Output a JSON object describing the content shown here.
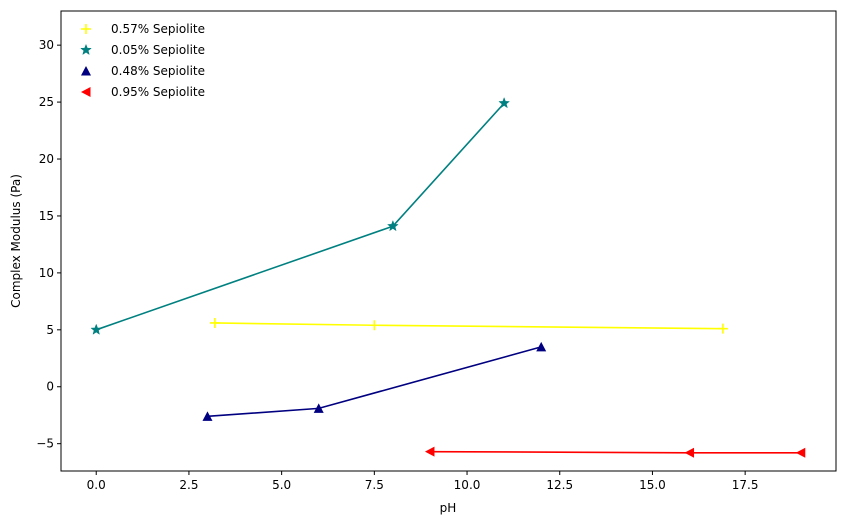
{
  "chart_data": {
    "type": "line",
    "title": "",
    "xlabel": "pH",
    "ylabel": "Complex Modulus (Pa)",
    "xlim": [
      -0.95,
      19.95
    ],
    "ylim": [
      -7.4,
      33.0
    ],
    "xticks": [
      0.0,
      2.5,
      5.0,
      7.5,
      10.0,
      12.5,
      15.0,
      17.5
    ],
    "xtick_labels": [
      "0.0",
      "2.5",
      "5.0",
      "7.5",
      "10.0",
      "12.5",
      "15.0",
      "17.5"
    ],
    "yticks": [
      -5,
      0,
      5,
      10,
      15,
      20,
      25,
      30
    ],
    "ytick_labels": [
      "−5",
      "0",
      "5",
      "10",
      "15",
      "20",
      "25",
      "30"
    ],
    "grid": false,
    "legend_position": "top-left",
    "series": [
      {
        "name": "0.57% Sepiolite",
        "color": "#ffff00",
        "marker": "plus",
        "x": [
          3.2,
          7.5,
          16.9
        ],
        "y": [
          5.6,
          5.4,
          5.1
        ]
      },
      {
        "name": "0.05% Sepiolite",
        "color": "#008080",
        "marker": "star",
        "x": [
          0.0,
          8.0,
          11.0
        ],
        "y": [
          5.0,
          14.1,
          24.9
        ]
      },
      {
        "name": "0.48% Sepiolite",
        "color": "#000080",
        "marker": "triangle-up",
        "x": [
          3.0,
          6.0,
          12.0
        ],
        "y": [
          -2.6,
          -1.9,
          3.5
        ]
      },
      {
        "name": "0.95% Sepiolite",
        "color": "#ff0000",
        "marker": "triangle-left",
        "x": [
          9.0,
          16.0,
          19.0
        ],
        "y": [
          -5.7,
          -5.8,
          -5.8
        ]
      }
    ]
  }
}
